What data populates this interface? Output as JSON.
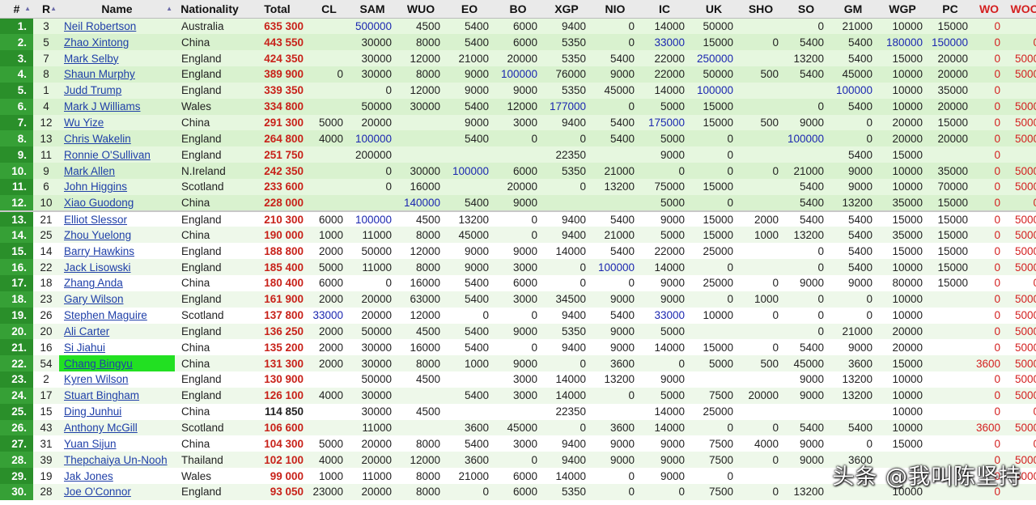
{
  "columns": [
    "#",
    "R",
    "Name",
    "Nationality",
    "Total",
    "CL",
    "SAM",
    "WUO",
    "EO",
    "BO",
    "XGP",
    "NIO",
    "IC",
    "UK",
    "SHO",
    "SO",
    "GM",
    "WGP",
    "PC",
    "WO",
    "WOO"
  ],
  "blue_values": [
    "500000",
    "100000",
    "177000",
    "175000",
    "100000",
    "250000",
    "180000",
    "150000",
    "100000",
    "100000",
    "140000",
    "33000"
  ],
  "highlight_color": "#22e022",
  "watermark": "头条 @我叫陈坚持",
  "rows": [
    {
      "rank": "1.",
      "r": "3",
      "name": "Neil Robertson",
      "nat": "Australia",
      "total": "635 300",
      "cells": [
        "",
        "500000",
        "4500",
        "5400",
        "6000",
        "9400",
        "0",
        "14000",
        "50000",
        "",
        "0",
        "21000",
        "10000",
        "15000",
        "0",
        ""
      ]
    },
    {
      "rank": "2.",
      "r": "5",
      "name": "Zhao Xintong",
      "nat": "China",
      "total": "443 550",
      "cells": [
        "",
        "30000",
        "8000",
        "5400",
        "6000",
        "5350",
        "0",
        "33000",
        "15000",
        "0",
        "5400",
        "5400",
        "180000",
        "150000",
        "0",
        "0"
      ]
    },
    {
      "rank": "3.",
      "r": "7",
      "name": "Mark Selby",
      "nat": "England",
      "total": "424 350",
      "cells": [
        "",
        "30000",
        "12000",
        "21000",
        "20000",
        "5350",
        "5400",
        "22000",
        "250000",
        "",
        "13200",
        "5400",
        "15000",
        "20000",
        "0",
        "5000"
      ]
    },
    {
      "rank": "4.",
      "r": "8",
      "name": "Shaun Murphy",
      "nat": "England",
      "total": "389 900",
      "cells": [
        "0",
        "30000",
        "8000",
        "9000",
        "100000",
        "76000",
        "9000",
        "22000",
        "50000",
        "500",
        "5400",
        "45000",
        "10000",
        "20000",
        "0",
        "5000"
      ]
    },
    {
      "rank": "5.",
      "r": "1",
      "name": "Judd Trump",
      "nat": "England",
      "total": "339 350",
      "cells": [
        "",
        "0",
        "12000",
        "9000",
        "9000",
        "5350",
        "45000",
        "14000",
        "100000",
        "",
        "",
        "100000",
        "10000",
        "35000",
        "0",
        ""
      ]
    },
    {
      "rank": "6.",
      "r": "4",
      "name": "Mark J Williams",
      "nat": "Wales",
      "total": "334 800",
      "cells": [
        "",
        "50000",
        "30000",
        "5400",
        "12000",
        "177000",
        "0",
        "5000",
        "15000",
        "",
        "0",
        "5400",
        "10000",
        "20000",
        "0",
        "5000"
      ]
    },
    {
      "rank": "7.",
      "r": "12",
      "name": "Wu Yize",
      "nat": "China",
      "total": "291 300",
      "cells": [
        "5000",
        "20000",
        "",
        "9000",
        "3000",
        "9400",
        "5400",
        "175000",
        "15000",
        "500",
        "9000",
        "0",
        "20000",
        "15000",
        "0",
        "5000"
      ]
    },
    {
      "rank": "8.",
      "r": "13",
      "name": "Chris Wakelin",
      "nat": "England",
      "total": "264 800",
      "cells": [
        "4000",
        "100000",
        "",
        "5400",
        "0",
        "0",
        "5400",
        "5000",
        "0",
        "",
        "100000",
        "0",
        "20000",
        "20000",
        "0",
        "5000"
      ]
    },
    {
      "rank": "9.",
      "r": "11",
      "name": "Ronnie O'Sullivan",
      "nat": "England",
      "total": "251 750",
      "cells": [
        "",
        "200000",
        "",
        "",
        "",
        "22350",
        "",
        "9000",
        "0",
        "",
        "",
        "5400",
        "15000",
        "",
        "0",
        ""
      ]
    },
    {
      "rank": "10.",
      "r": "9",
      "name": "Mark Allen",
      "nat": "N.Ireland",
      "total": "242 350",
      "cells": [
        "",
        "0",
        "30000",
        "100000",
        "6000",
        "5350",
        "21000",
        "0",
        "0",
        "0",
        "21000",
        "9000",
        "10000",
        "35000",
        "0",
        "5000"
      ]
    },
    {
      "rank": "11.",
      "r": "6",
      "name": "John Higgins",
      "nat": "Scotland",
      "total": "233 600",
      "cells": [
        "",
        "0",
        "16000",
        "",
        "20000",
        "0",
        "13200",
        "75000",
        "15000",
        "",
        "5400",
        "9000",
        "10000",
        "70000",
        "0",
        "5000"
      ]
    },
    {
      "rank": "12.",
      "r": "10",
      "name": "Xiao Guodong",
      "nat": "China",
      "total": "228 000",
      "cells": [
        "",
        "",
        "140000",
        "5400",
        "9000",
        "",
        "",
        "5000",
        "0",
        "",
        "5400",
        "13200",
        "35000",
        "15000",
        "0",
        "0"
      ]
    },
    {
      "rank": "13.",
      "r": "21",
      "name": "Elliot Slessor",
      "nat": "England",
      "total": "210 300",
      "cells": [
        "6000",
        "100000",
        "4500",
        "13200",
        "0",
        "9400",
        "5400",
        "9000",
        "15000",
        "2000",
        "5400",
        "5400",
        "15000",
        "15000",
        "0",
        "5000"
      ]
    },
    {
      "rank": "14.",
      "r": "25",
      "name": "Zhou Yuelong",
      "nat": "China",
      "total": "190 000",
      "cells": [
        "1000",
        "11000",
        "8000",
        "45000",
        "0",
        "9400",
        "21000",
        "5000",
        "15000",
        "1000",
        "13200",
        "5400",
        "35000",
        "15000",
        "0",
        "5000"
      ]
    },
    {
      "rank": "15.",
      "r": "14",
      "name": "Barry Hawkins",
      "nat": "England",
      "total": "188 800",
      "cells": [
        "2000",
        "50000",
        "12000",
        "9000",
        "9000",
        "14000",
        "5400",
        "22000",
        "25000",
        "",
        "0",
        "5400",
        "15000",
        "15000",
        "0",
        "5000"
      ]
    },
    {
      "rank": "16.",
      "r": "22",
      "name": "Jack Lisowski",
      "nat": "England",
      "total": "185 400",
      "cells": [
        "5000",
        "11000",
        "8000",
        "9000",
        "3000",
        "0",
        "100000",
        "14000",
        "0",
        "",
        "0",
        "5400",
        "10000",
        "15000",
        "0",
        "5000"
      ]
    },
    {
      "rank": "17.",
      "r": "18",
      "name": "Zhang Anda",
      "nat": "China",
      "total": "180 400",
      "cells": [
        "6000",
        "0",
        "16000",
        "5400",
        "6000",
        "0",
        "0",
        "9000",
        "25000",
        "0",
        "9000",
        "9000",
        "80000",
        "15000",
        "0",
        "0"
      ]
    },
    {
      "rank": "18.",
      "r": "23",
      "name": "Gary Wilson",
      "nat": "England",
      "total": "161 900",
      "cells": [
        "2000",
        "20000",
        "63000",
        "5400",
        "3000",
        "34500",
        "9000",
        "9000",
        "0",
        "1000",
        "0",
        "0",
        "10000",
        "",
        "0",
        "5000"
      ]
    },
    {
      "rank": "19.",
      "r": "26",
      "name": "Stephen Maguire",
      "nat": "Scotland",
      "total": "137 800",
      "cells": [
        "33000",
        "20000",
        "12000",
        "0",
        "0",
        "9400",
        "5400",
        "33000",
        "10000",
        "0",
        "0",
        "0",
        "10000",
        "",
        "0",
        "5000"
      ]
    },
    {
      "rank": "20.",
      "r": "20",
      "name": "Ali Carter",
      "nat": "England",
      "total": "136 250",
      "cells": [
        "2000",
        "50000",
        "4500",
        "5400",
        "9000",
        "5350",
        "9000",
        "5000",
        "",
        "",
        "0",
        "21000",
        "20000",
        "",
        "0",
        "5000"
      ]
    },
    {
      "rank": "21.",
      "r": "16",
      "name": "Si Jiahui",
      "nat": "China",
      "total": "135 200",
      "cells": [
        "2000",
        "30000",
        "16000",
        "5400",
        "0",
        "9400",
        "9000",
        "14000",
        "15000",
        "0",
        "5400",
        "9000",
        "20000",
        "",
        "0",
        "5000"
      ]
    },
    {
      "rank": "22.",
      "r": "54",
      "name": "Chang Bingyu",
      "nat": "China",
      "total": "131 300",
      "highlight": true,
      "cells": [
        "2000",
        "30000",
        "8000",
        "1000",
        "9000",
        "0",
        "3600",
        "0",
        "5000",
        "500",
        "45000",
        "3600",
        "15000",
        "",
        "3600",
        "5000"
      ]
    },
    {
      "rank": "23.",
      "r": "2",
      "name": "Kyren Wilson",
      "nat": "England",
      "total": "130 900",
      "cells": [
        "",
        "50000",
        "4500",
        "",
        "3000",
        "14000",
        "13200",
        "9000",
        "",
        "",
        "9000",
        "13200",
        "10000",
        "",
        "0",
        "5000"
      ]
    },
    {
      "rank": "24.",
      "r": "17",
      "name": "Stuart Bingham",
      "nat": "England",
      "total": "126 100",
      "cells": [
        "4000",
        "30000",
        "",
        "5400",
        "3000",
        "14000",
        "0",
        "5000",
        "7500",
        "20000",
        "9000",
        "13200",
        "10000",
        "",
        "0",
        "5000"
      ]
    },
    {
      "rank": "25.",
      "r": "15",
      "name": "Ding Junhui",
      "nat": "China",
      "total": "114 850",
      "totalBlack": true,
      "cells": [
        "",
        "30000",
        "4500",
        "",
        "",
        "22350",
        "",
        "14000",
        "25000",
        "",
        "",
        "",
        "10000",
        "",
        "0",
        "0"
      ]
    },
    {
      "rank": "26.",
      "r": "43",
      "name": "Anthony McGill",
      "nat": "Scotland",
      "total": "106 600",
      "cells": [
        "",
        "11000",
        "",
        "3600",
        "45000",
        "0",
        "3600",
        "14000",
        "0",
        "0",
        "5400",
        "5400",
        "10000",
        "",
        "3600",
        "5000"
      ]
    },
    {
      "rank": "27.",
      "r": "31",
      "name": "Yuan Sijun",
      "nat": "China",
      "total": "104 300",
      "cells": [
        "5000",
        "20000",
        "8000",
        "5400",
        "3000",
        "9400",
        "9000",
        "9000",
        "7500",
        "4000",
        "9000",
        "0",
        "15000",
        "",
        "0",
        "0"
      ]
    },
    {
      "rank": "28.",
      "r": "39",
      "name": "Thepchaiya Un-Nooh",
      "nat": "Thailand",
      "total": "102 100",
      "cells": [
        "4000",
        "20000",
        "12000",
        "3600",
        "0",
        "9400",
        "9000",
        "9000",
        "7500",
        "0",
        "9000",
        "3600",
        "",
        "",
        "0",
        "5000"
      ]
    },
    {
      "rank": "29.",
      "r": "19",
      "name": "Jak Jones",
      "nat": "Wales",
      "total": "99 000",
      "cells": [
        "1000",
        "11000",
        "8000",
        "21000",
        "6000",
        "14000",
        "0",
        "9000",
        "0",
        "",
        "",
        "",
        "",
        "",
        "0",
        "5000"
      ]
    },
    {
      "rank": "30.",
      "r": "28",
      "name": "Joe O'Connor",
      "nat": "England",
      "total": "93 050",
      "cells": [
        "23000",
        "20000",
        "8000",
        "0",
        "6000",
        "5350",
        "0",
        "0",
        "7500",
        "0",
        "13200",
        "",
        "10000",
        "",
        "0",
        ""
      ]
    }
  ]
}
